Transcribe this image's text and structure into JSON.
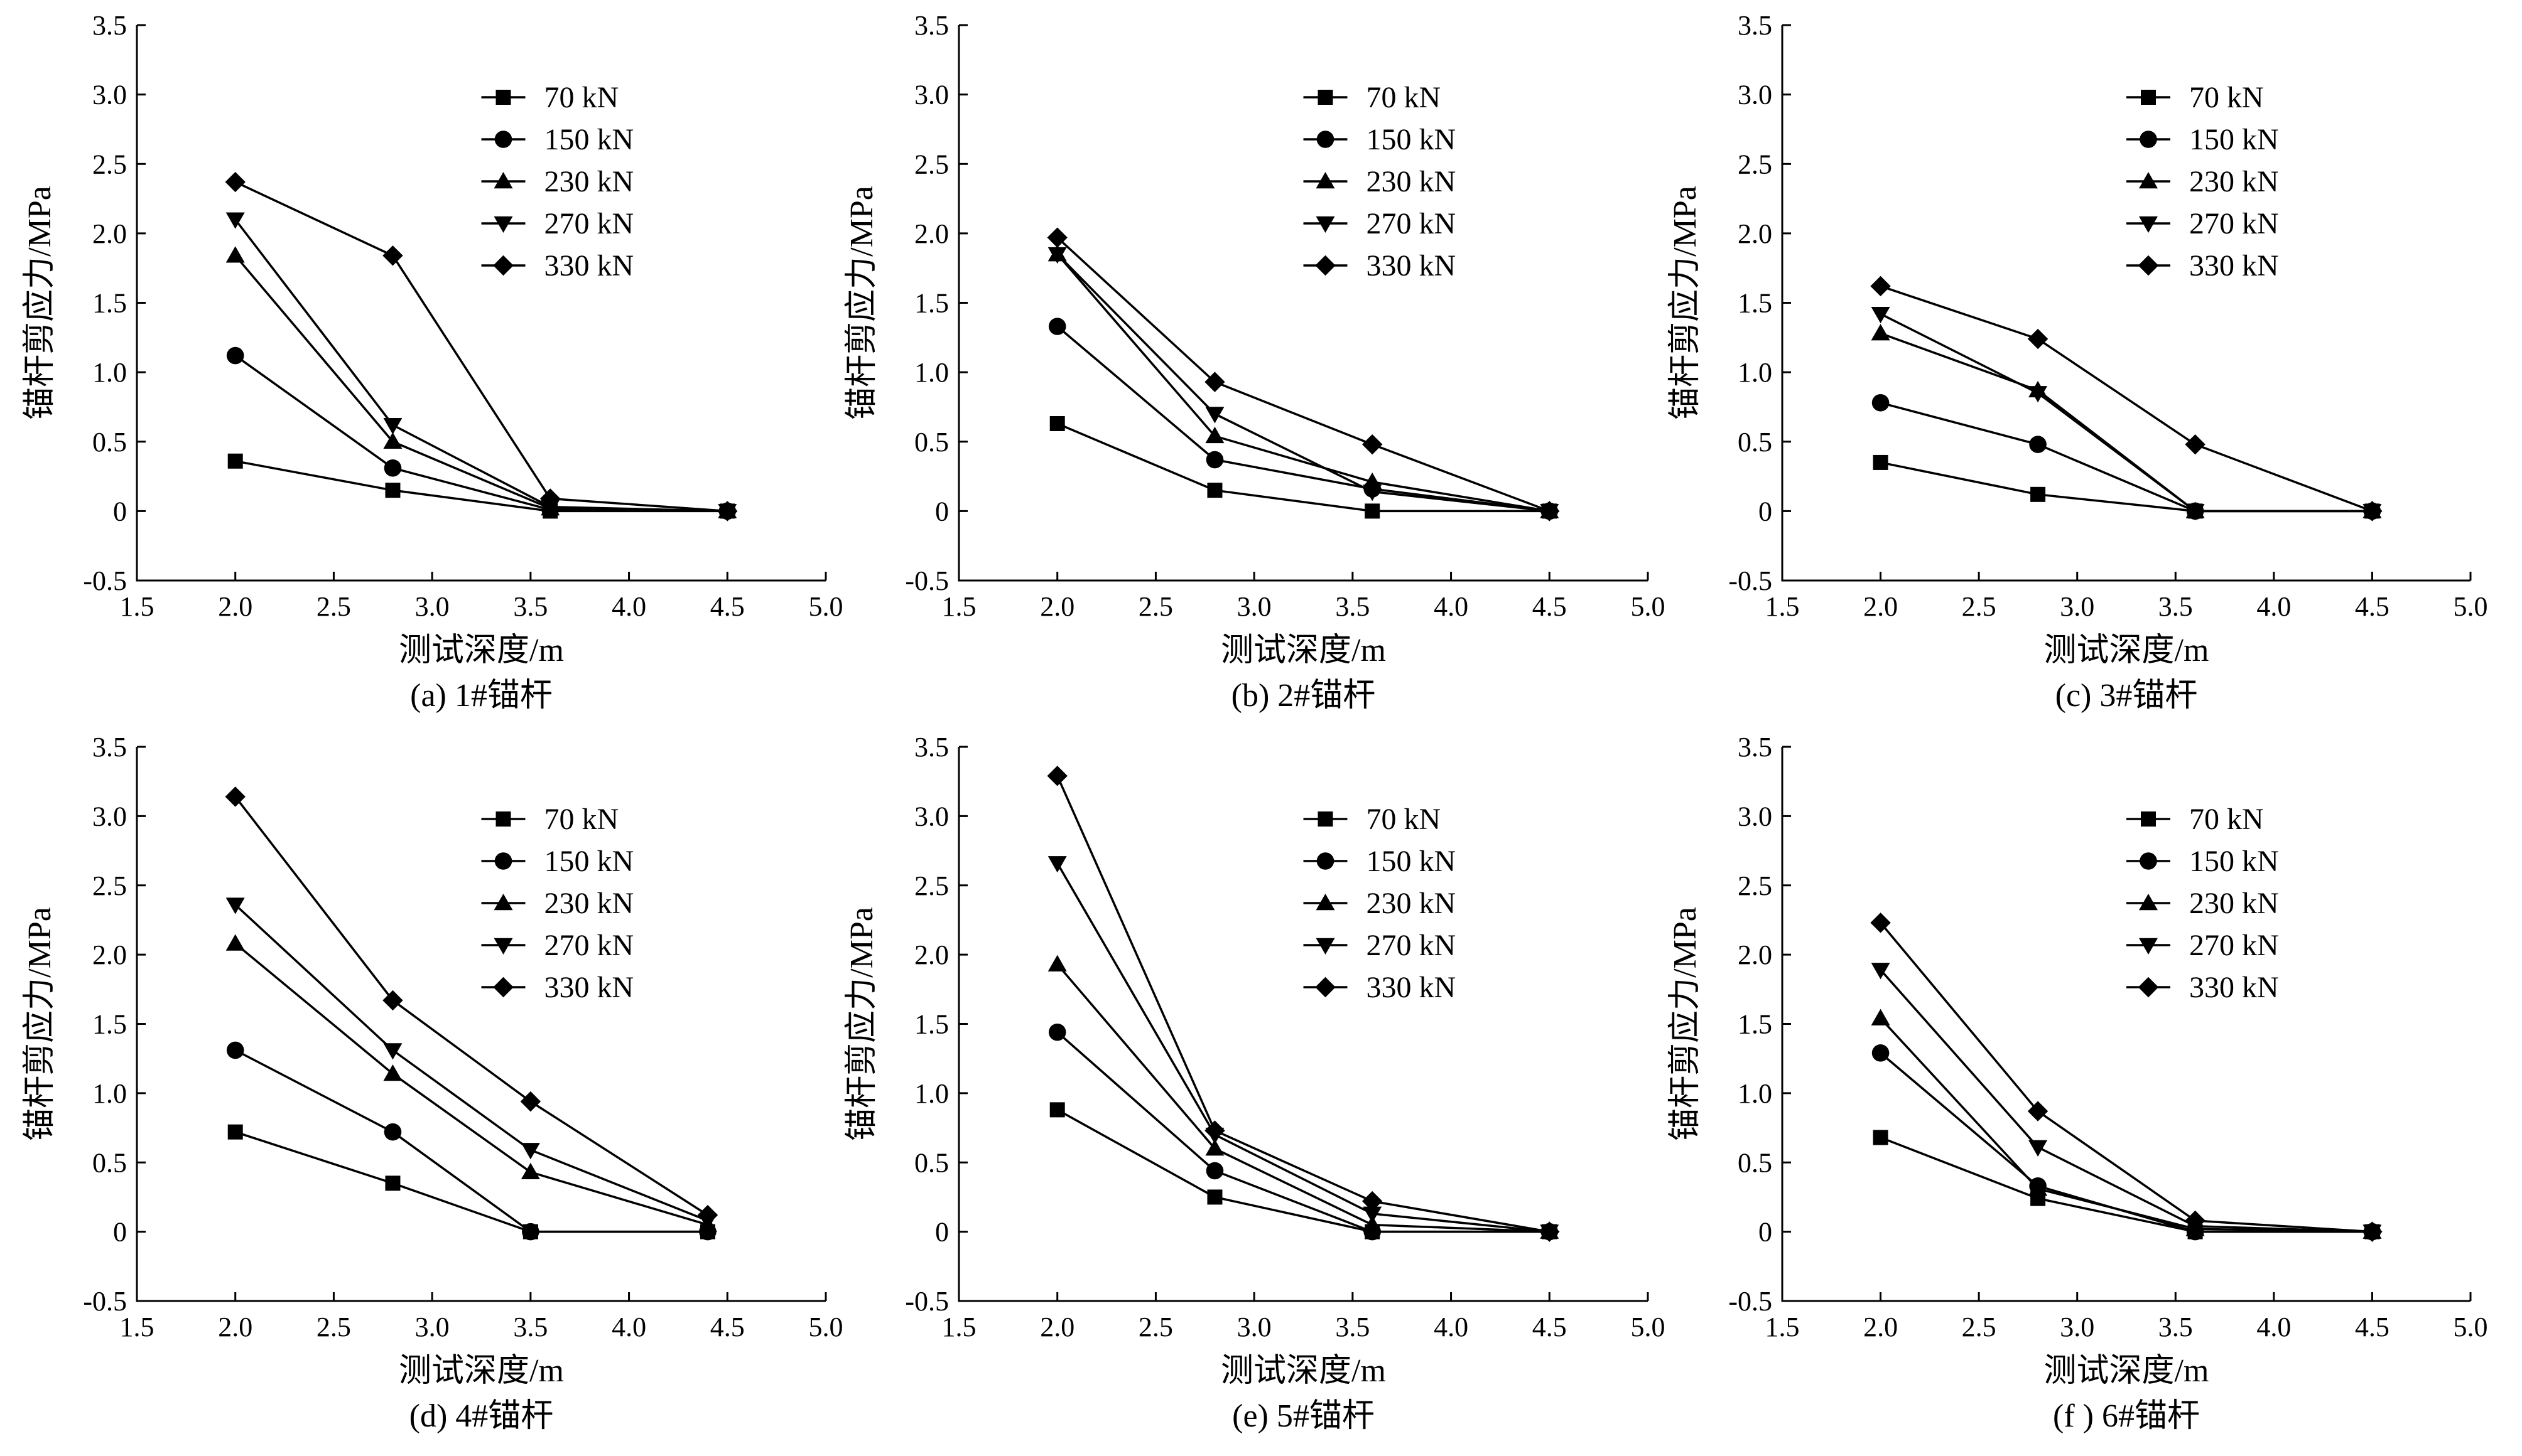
{
  "chart_data": [
    {
      "type": "line",
      "caption": "(a) 1#锚杆",
      "xlabel": "测试深度/m",
      "ylabel": "锚杆剪应力/MPa",
      "xlim": [
        1.5,
        5.0
      ],
      "ylim": [
        -0.5,
        3.5
      ],
      "xticks": [
        "1.5",
        "2.0",
        "2.5",
        "3.0",
        "3.5",
        "4.0",
        "4.5",
        "5.0"
      ],
      "yticks": [
        "-0.5",
        "0",
        "0.5",
        "1.0",
        "1.5",
        "2.0",
        "2.5",
        "3.0",
        "3.5"
      ],
      "legend_position": "top-right",
      "series": [
        {
          "name": "70 kN",
          "marker": "square",
          "x": [
            2.0,
            2.8,
            3.6,
            4.5
          ],
          "y": [
            0.36,
            0.15,
            0.0,
            0.0
          ]
        },
        {
          "name": "150 kN",
          "marker": "circle",
          "x": [
            2.0,
            2.8,
            3.6,
            4.5
          ],
          "y": [
            1.12,
            0.31,
            0.01,
            0.0
          ]
        },
        {
          "name": "230 kN",
          "marker": "triangle-up",
          "x": [
            2.0,
            2.8,
            3.6,
            4.5
          ],
          "y": [
            1.84,
            0.5,
            0.02,
            0.0
          ]
        },
        {
          "name": "270 kN",
          "marker": "triangle-down",
          "x": [
            2.0,
            2.8,
            3.6,
            4.5
          ],
          "y": [
            2.1,
            0.62,
            0.03,
            0.0
          ]
        },
        {
          "name": "330 kN",
          "marker": "diamond",
          "x": [
            2.0,
            2.8,
            3.6,
            4.5
          ],
          "y": [
            2.37,
            1.84,
            0.09,
            0.0
          ]
        }
      ]
    },
    {
      "type": "line",
      "caption": "(b) 2#锚杆",
      "xlabel": "测试深度/m",
      "ylabel": "锚杆剪应力/MPa",
      "xlim": [
        1.5,
        5.0
      ],
      "ylim": [
        -0.5,
        3.5
      ],
      "xticks": [
        "1.5",
        "2.0",
        "2.5",
        "3.0",
        "3.5",
        "4.0",
        "4.5",
        "5.0"
      ],
      "yticks": [
        "-0.5",
        "0",
        "0.5",
        "1.0",
        "1.5",
        "2.0",
        "2.5",
        "3.0",
        "3.5"
      ],
      "legend_position": "top-right",
      "series": [
        {
          "name": "70 kN",
          "marker": "square",
          "x": [
            2.0,
            2.8,
            3.6,
            4.5
          ],
          "y": [
            0.63,
            0.15,
            0.0,
            0.0
          ]
        },
        {
          "name": "150 kN",
          "marker": "circle",
          "x": [
            2.0,
            2.8,
            3.6,
            4.5
          ],
          "y": [
            1.33,
            0.37,
            0.16,
            0.0
          ]
        },
        {
          "name": "230 kN",
          "marker": "triangle-up",
          "x": [
            2.0,
            2.8,
            3.6,
            4.5
          ],
          "y": [
            1.85,
            0.54,
            0.21,
            0.0
          ]
        },
        {
          "name": "270 kN",
          "marker": "triangle-down",
          "x": [
            2.0,
            2.8,
            3.6,
            4.5
          ],
          "y": [
            1.85,
            0.7,
            0.14,
            0.0
          ]
        },
        {
          "name": "330 kN",
          "marker": "diamond",
          "x": [
            2.0,
            2.8,
            3.6,
            4.5
          ],
          "y": [
            1.97,
            0.93,
            0.48,
            0.0
          ]
        }
      ]
    },
    {
      "type": "line",
      "caption": "(c) 3#锚杆",
      "xlabel": "测试深度/m",
      "ylabel": "锚杆剪应力/MPa",
      "xlim": [
        1.5,
        5.0
      ],
      "ylim": [
        -0.5,
        3.5
      ],
      "xticks": [
        "1.5",
        "2.0",
        "2.5",
        "3.0",
        "3.5",
        "4.0",
        "4.5",
        "5.0"
      ],
      "yticks": [
        "-0.5",
        "0",
        "0.5",
        "1.0",
        "1.5",
        "2.0",
        "2.5",
        "3.0",
        "3.5"
      ],
      "legend_position": "top-right",
      "series": [
        {
          "name": "70 kN",
          "marker": "square",
          "x": [
            2.0,
            2.8,
            3.6,
            4.5
          ],
          "y": [
            0.35,
            0.12,
            0.0,
            0.0
          ]
        },
        {
          "name": "150 kN",
          "marker": "circle",
          "x": [
            2.0,
            2.8,
            3.6,
            4.5
          ],
          "y": [
            0.78,
            0.48,
            0.0,
            0.0
          ]
        },
        {
          "name": "230 kN",
          "marker": "triangle-up",
          "x": [
            2.0,
            2.8,
            3.6,
            4.5
          ],
          "y": [
            1.28,
            0.87,
            0.0,
            0.0
          ]
        },
        {
          "name": "270 kN",
          "marker": "triangle-down",
          "x": [
            2.0,
            2.8,
            3.6,
            4.5
          ],
          "y": [
            1.42,
            0.85,
            0.0,
            0.0
          ]
        },
        {
          "name": "330 kN",
          "marker": "diamond",
          "x": [
            2.0,
            2.8,
            3.6,
            4.5
          ],
          "y": [
            1.62,
            1.24,
            0.48,
            0.0
          ]
        }
      ]
    },
    {
      "type": "line",
      "caption": "(d) 4#锚杆",
      "xlabel": "测试深度/m",
      "ylabel": "锚杆剪应力/MPa",
      "xlim": [
        1.5,
        5.0
      ],
      "ylim": [
        -0.5,
        3.5
      ],
      "xticks": [
        "1.5",
        "2.0",
        "2.5",
        "3.0",
        "3.5",
        "4.0",
        "4.5",
        "5.0"
      ],
      "yticks": [
        "-0.5",
        "0",
        "0.5",
        "1.0",
        "1.5",
        "2.0",
        "2.5",
        "3.0",
        "3.5"
      ],
      "legend_position": "top-right",
      "series": [
        {
          "name": "70 kN",
          "marker": "square",
          "x": [
            2.0,
            2.8,
            3.5,
            4.4
          ],
          "y": [
            0.72,
            0.35,
            0.0,
            0.0
          ]
        },
        {
          "name": "150 kN",
          "marker": "circle",
          "x": [
            2.0,
            2.8,
            3.5,
            4.4
          ],
          "y": [
            1.31,
            0.72,
            0.0,
            0.0
          ]
        },
        {
          "name": "230 kN",
          "marker": "triangle-up",
          "x": [
            2.0,
            2.8,
            3.5,
            4.4
          ],
          "y": [
            2.08,
            1.14,
            0.43,
            0.05
          ]
        },
        {
          "name": "270 kN",
          "marker": "triangle-down",
          "x": [
            2.0,
            2.8,
            3.5,
            4.4
          ],
          "y": [
            2.36,
            1.31,
            0.59,
            0.08
          ]
        },
        {
          "name": "330 kN",
          "marker": "diamond",
          "x": [
            2.0,
            2.8,
            3.5,
            4.4
          ],
          "y": [
            3.14,
            1.67,
            0.94,
            0.12
          ]
        }
      ]
    },
    {
      "type": "line",
      "caption": "(e) 5#锚杆",
      "xlabel": "测试深度/m",
      "ylabel": "锚杆剪应力/MPa",
      "xlim": [
        1.5,
        5.0
      ],
      "ylim": [
        -0.5,
        3.5
      ],
      "xticks": [
        "1.5",
        "2.0",
        "2.5",
        "3.0",
        "3.5",
        "4.0",
        "4.5",
        "5.0"
      ],
      "yticks": [
        "-0.5",
        "0",
        "0.5",
        "1.0",
        "1.5",
        "2.0",
        "2.5",
        "3.0",
        "3.5"
      ],
      "legend_position": "top-right",
      "series": [
        {
          "name": "70 kN",
          "marker": "square",
          "x": [
            2.0,
            2.8,
            3.6,
            4.5
          ],
          "y": [
            0.88,
            0.25,
            0.0,
            0.0
          ]
        },
        {
          "name": "150 kN",
          "marker": "circle",
          "x": [
            2.0,
            2.8,
            3.6,
            4.5
          ],
          "y": [
            1.44,
            0.44,
            0.0,
            0.0
          ]
        },
        {
          "name": "230 kN",
          "marker": "triangle-up",
          "x": [
            2.0,
            2.8,
            3.6,
            4.5
          ],
          "y": [
            1.93,
            0.6,
            0.05,
            0.0
          ]
        },
        {
          "name": "270 kN",
          "marker": "triangle-down",
          "x": [
            2.0,
            2.8,
            3.6,
            4.5
          ],
          "y": [
            2.66,
            0.7,
            0.13,
            0.0
          ]
        },
        {
          "name": "330 kN",
          "marker": "diamond",
          "x": [
            2.0,
            2.8,
            3.6,
            4.5
          ],
          "y": [
            3.29,
            0.73,
            0.22,
            0.0
          ]
        }
      ]
    },
    {
      "type": "line",
      "caption": "(f ) 6#锚杆",
      "xlabel": "测试深度/m",
      "ylabel": "锚杆剪应力/MPa",
      "xlim": [
        1.5,
        5.0
      ],
      "ylim": [
        -0.5,
        3.5
      ],
      "xticks": [
        "1.5",
        "2.0",
        "2.5",
        "3.0",
        "3.5",
        "4.0",
        "4.5",
        "5.0"
      ],
      "yticks": [
        "-0.5",
        "0",
        "0.5",
        "1.0",
        "1.5",
        "2.0",
        "2.5",
        "3.0",
        "3.5"
      ],
      "legend_position": "top-right",
      "series": [
        {
          "name": "70 kN",
          "marker": "square",
          "x": [
            2.0,
            2.8,
            3.6,
            4.5
          ],
          "y": [
            0.68,
            0.24,
            0.0,
            0.0
          ]
        },
        {
          "name": "150 kN",
          "marker": "circle",
          "x": [
            2.0,
            2.8,
            3.6,
            4.5
          ],
          "y": [
            1.29,
            0.33,
            0.0,
            0.0
          ]
        },
        {
          "name": "230 kN",
          "marker": "triangle-up",
          "x": [
            2.0,
            2.8,
            3.6,
            4.5
          ],
          "y": [
            1.54,
            0.31,
            0.02,
            0.0
          ]
        },
        {
          "name": "270 kN",
          "marker": "triangle-down",
          "x": [
            2.0,
            2.8,
            3.6,
            4.5
          ],
          "y": [
            1.89,
            0.61,
            0.04,
            0.0
          ]
        },
        {
          "name": "330 kN",
          "marker": "diamond",
          "x": [
            2.0,
            2.8,
            3.6,
            4.5
          ],
          "y": [
            2.23,
            0.87,
            0.08,
            0.0
          ]
        }
      ]
    }
  ]
}
